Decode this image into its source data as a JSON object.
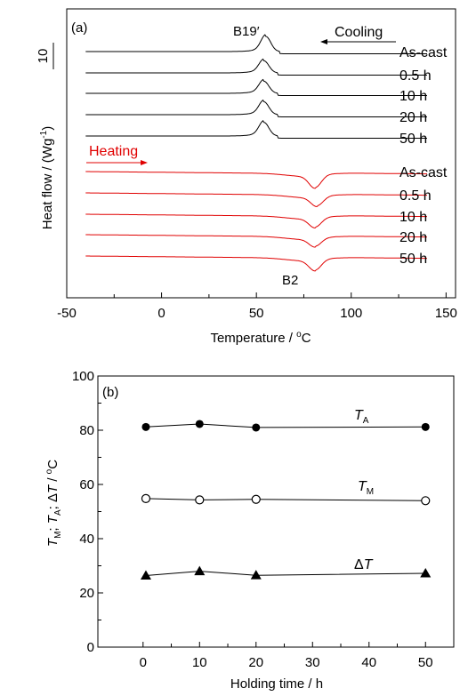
{
  "chart_data": [
    {
      "panel_label": "(a)",
      "type": "line",
      "xlabel": "Temperature / °C",
      "ylabel": "Heat flow / (W·g⁻¹)",
      "scale_bar_label": "10",
      "xlim": [
        -50,
        155
      ],
      "xticks": [
        "-50",
        "0",
        "50",
        "100",
        "150"
      ],
      "grid": false,
      "peak_labels": {
        "cooling": "B19′",
        "heating": "B2"
      },
      "direction_labels": {
        "cooling": "Cooling",
        "heating": "Heating"
      },
      "series": [
        {
          "group": "cooling",
          "name": "As-cast",
          "peak_x": 55,
          "peak_height": 1.0,
          "x_range": [
            -40,
            140
          ]
        },
        {
          "group": "cooling",
          "name": "0.5 h",
          "peak_x": 54,
          "peak_height": 0.8,
          "x_range": [
            -40,
            140
          ]
        },
        {
          "group": "cooling",
          "name": "10 h",
          "peak_x": 54,
          "peak_height": 0.8,
          "x_range": [
            -40,
            140
          ]
        },
        {
          "group": "cooling",
          "name": "20 h",
          "peak_x": 54,
          "peak_height": 0.85,
          "x_range": [
            -40,
            140
          ]
        },
        {
          "group": "cooling",
          "name": "50 h",
          "peak_x": 54,
          "peak_height": 0.9,
          "x_range": [
            -40,
            140
          ]
        },
        {
          "group": "heating",
          "name": "As-cast",
          "peak_x": 81,
          "peak_height": 1.0,
          "x_range": [
            -40,
            140
          ]
        },
        {
          "group": "heating",
          "name": "0.5 h",
          "peak_x": 82,
          "peak_height": 0.75,
          "x_range": [
            -40,
            140
          ]
        },
        {
          "group": "heating",
          "name": "10 h",
          "peak_x": 81,
          "peak_height": 0.75,
          "x_range": [
            -40,
            140
          ]
        },
        {
          "group": "heating",
          "name": "20 h",
          "peak_x": 81,
          "peak_height": 0.65,
          "x_range": [
            -40,
            140
          ]
        },
        {
          "group": "heating",
          "name": "50 h",
          "peak_x": 81,
          "peak_height": 0.85,
          "x_range": [
            -40,
            140
          ]
        }
      ],
      "colors": {
        "cooling": "#000000",
        "heating": "#e00000"
      }
    },
    {
      "panel_label": "(b)",
      "type": "line",
      "xlabel": "Holding time / h",
      "ylabel": "TM; TA; ΔT / °C",
      "xlim": [
        -8,
        55
      ],
      "ylim": [
        0,
        100
      ],
      "xticks": [
        "0",
        "10",
        "20",
        "30",
        "40",
        "50"
      ],
      "yticks": [
        "0",
        "20",
        "40",
        "60",
        "80",
        "100"
      ],
      "grid": false,
      "series": [
        {
          "name": "TA",
          "label_main": "T",
          "label_sub": "A",
          "marker": "filled-circle",
          "x": [
            0.5,
            10,
            20,
            50
          ],
          "y": [
            81.2,
            82.3,
            81.0,
            81.2
          ]
        },
        {
          "name": "TM",
          "label_main": "T",
          "label_sub": "M",
          "marker": "open-circle",
          "x": [
            0.5,
            10,
            20,
            50
          ],
          "y": [
            54.8,
            54.3,
            54.5,
            54.0
          ]
        },
        {
          "name": "ΔT",
          "label_main": "ΔT",
          "label_sub": "",
          "marker": "filled-triangle",
          "x": [
            0.5,
            10,
            20,
            50
          ],
          "y": [
            26.4,
            28.0,
            26.5,
            27.2
          ]
        }
      ]
    }
  ]
}
